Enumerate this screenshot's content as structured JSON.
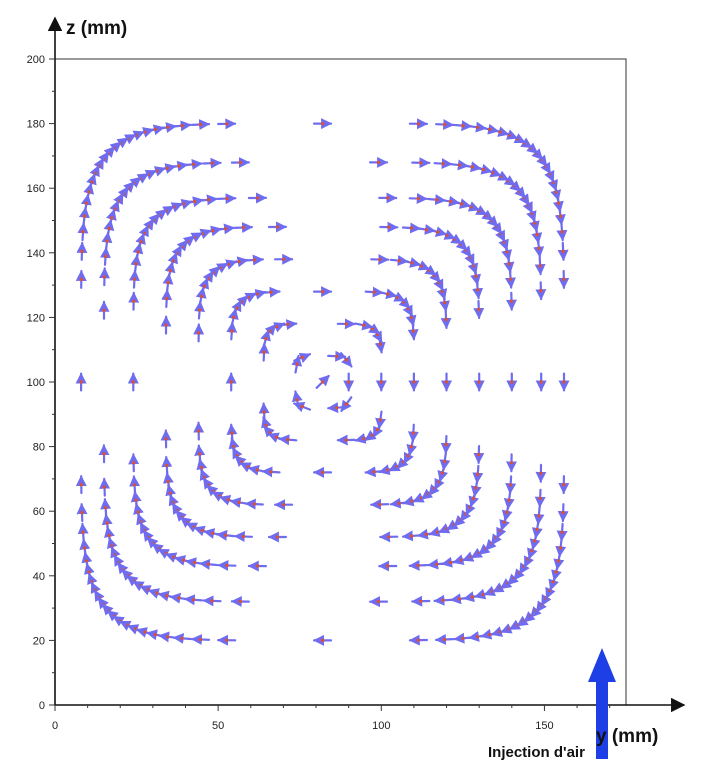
{
  "chart_data": {
    "type": "quiver",
    "title": "",
    "xlabel": "y (mm)",
    "ylabel": "z (mm)",
    "xlim": [
      0,
      175
    ],
    "ylim": [
      0,
      200
    ],
    "xticks": [
      0,
      50,
      100,
      150
    ],
    "yticks": [
      0,
      20,
      40,
      60,
      80,
      100,
      120,
      140,
      160,
      180,
      200
    ],
    "grid": false,
    "legend": "none",
    "annotation": "Injection d'air",
    "colors": {
      "vector": "#6f6cf0",
      "point": "#e0502a",
      "axis": "#111111",
      "injection_arrow": "#1e3fe6"
    },
    "flow": {
      "description": "single clockwise recirculation vortex",
      "vortex_center": [
        82,
        100
      ],
      "rings": [
        {
          "ry": 8,
          "rz": 8
        },
        {
          "ry": 18,
          "rz": 18
        },
        {
          "ry": 28,
          "rz": 28
        },
        {
          "ry": 38,
          "rz": 38
        },
        {
          "ry": 48,
          "rz": 48
        },
        {
          "ry": 58,
          "rz": 57
        },
        {
          "ry": 67,
          "rz": 68
        },
        {
          "ry": 74,
          "rz": 80
        }
      ]
    }
  }
}
